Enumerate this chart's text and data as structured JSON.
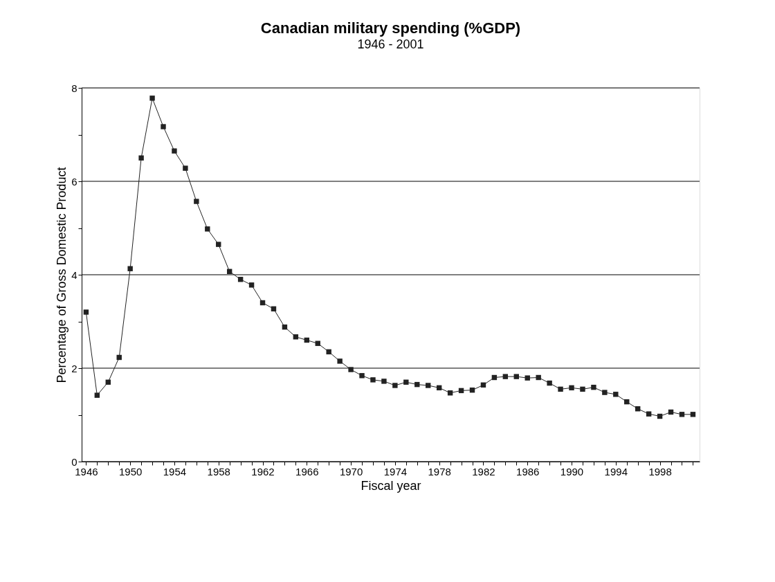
{
  "chart_data": {
    "type": "line",
    "title": "Canadian military spending (%GDP)",
    "subtitle": "1946 - 2001",
    "xlabel": "Fiscal year",
    "ylabel": "Percentage of Gross Domestic Product",
    "x": [
      1946,
      1947,
      1948,
      1949,
      1950,
      1951,
      1952,
      1953,
      1954,
      1955,
      1956,
      1957,
      1958,
      1959,
      1960,
      1961,
      1962,
      1963,
      1964,
      1965,
      1966,
      1967,
      1968,
      1969,
      1970,
      1971,
      1972,
      1973,
      1974,
      1975,
      1976,
      1977,
      1978,
      1979,
      1980,
      1981,
      1982,
      1983,
      1984,
      1985,
      1986,
      1987,
      1988,
      1989,
      1990,
      1991,
      1992,
      1993,
      1994,
      1995,
      1996,
      1997,
      1998,
      1999,
      2000,
      2001
    ],
    "series": [
      {
        "color": "#222222",
        "values": [
          3.2,
          1.42,
          1.7,
          2.23,
          4.13,
          6.5,
          7.78,
          7.17,
          6.65,
          6.28,
          5.57,
          4.98,
          4.65,
          4.07,
          3.9,
          3.78,
          3.4,
          3.27,
          2.88,
          2.67,
          2.6,
          2.53,
          2.35,
          2.15,
          1.97,
          1.84,
          1.75,
          1.72,
          1.63,
          1.7,
          1.65,
          1.63,
          1.58,
          1.47,
          1.52,
          1.53,
          1.64,
          1.8,
          1.82,
          1.82,
          1.79,
          1.8,
          1.68,
          1.55,
          1.58,
          1.55,
          1.59,
          1.48,
          1.44,
          1.28,
          1.13,
          1.02,
          0.97,
          1.06,
          1.01,
          1.01
        ]
      }
    ],
    "xlim": [
      1945.6,
      2001.6
    ],
    "xticks": [
      1946,
      {
        "value": 1947,
        "label": null
      },
      {
        "value": 1948,
        "label": null
      },
      {
        "value": 1949,
        "label": null
      },
      1950,
      {
        "value": 1951,
        "label": null
      },
      {
        "value": 1952,
        "label": null
      },
      {
        "value": 1953,
        "label": null
      },
      1954,
      {
        "value": 1955,
        "label": null
      },
      {
        "value": 1956,
        "label": null
      },
      {
        "value": 1957,
        "label": null
      },
      1958,
      {
        "value": 1959,
        "label": null
      },
      {
        "value": 1960,
        "label": null
      },
      {
        "value": 1961,
        "label": null
      },
      1962,
      {
        "value": 1963,
        "label": null
      },
      {
        "value": 1964,
        "label": null
      },
      {
        "value": 1965,
        "label": null
      },
      1966,
      {
        "value": 1967,
        "label": null
      },
      {
        "value": 1968,
        "label": null
      },
      {
        "value": 1969,
        "label": null
      },
      1970,
      {
        "value": 1971,
        "label": null
      },
      {
        "value": 1972,
        "label": null
      },
      {
        "value": 1973,
        "label": null
      },
      1974,
      {
        "value": 1975,
        "label": null
      },
      {
        "value": 1976,
        "label": null
      },
      {
        "value": 1977,
        "label": null
      },
      1978,
      {
        "value": 1979,
        "label": null
      },
      {
        "value": 1980,
        "label": null
      },
      {
        "value": 1981,
        "label": null
      },
      1982,
      {
        "value": 1983,
        "label": null
      },
      {
        "value": 1984,
        "label": null
      },
      {
        "value": 1985,
        "label": null
      },
      1986,
      {
        "value": 1987,
        "label": null
      },
      {
        "value": 1988,
        "label": null
      },
      {
        "value": 1989,
        "label": null
      },
      1990,
      {
        "value": 1991,
        "label": null
      },
      {
        "value": 1992,
        "label": null
      },
      {
        "value": 1993,
        "label": null
      },
      1994,
      {
        "value": 1995,
        "label": null
      },
      {
        "value": 1996,
        "label": null
      },
      {
        "value": 1997,
        "label": null
      },
      1998,
      {
        "value": 1999,
        "label": null
      },
      {
        "value": 2000,
        "label": null
      },
      {
        "value": 2001,
        "label": null
      }
    ],
    "ylim": [
      0,
      8
    ],
    "yticks": [
      0,
      {
        "value": 1,
        "label": null
      },
      2,
      {
        "value": 3,
        "label": null
      },
      4,
      {
        "value": 5,
        "label": null
      },
      6,
      {
        "value": 7,
        "label": null
      },
      8
    ],
    "grid": "y",
    "marker": "square",
    "line_style": "solid",
    "legend": false
  }
}
